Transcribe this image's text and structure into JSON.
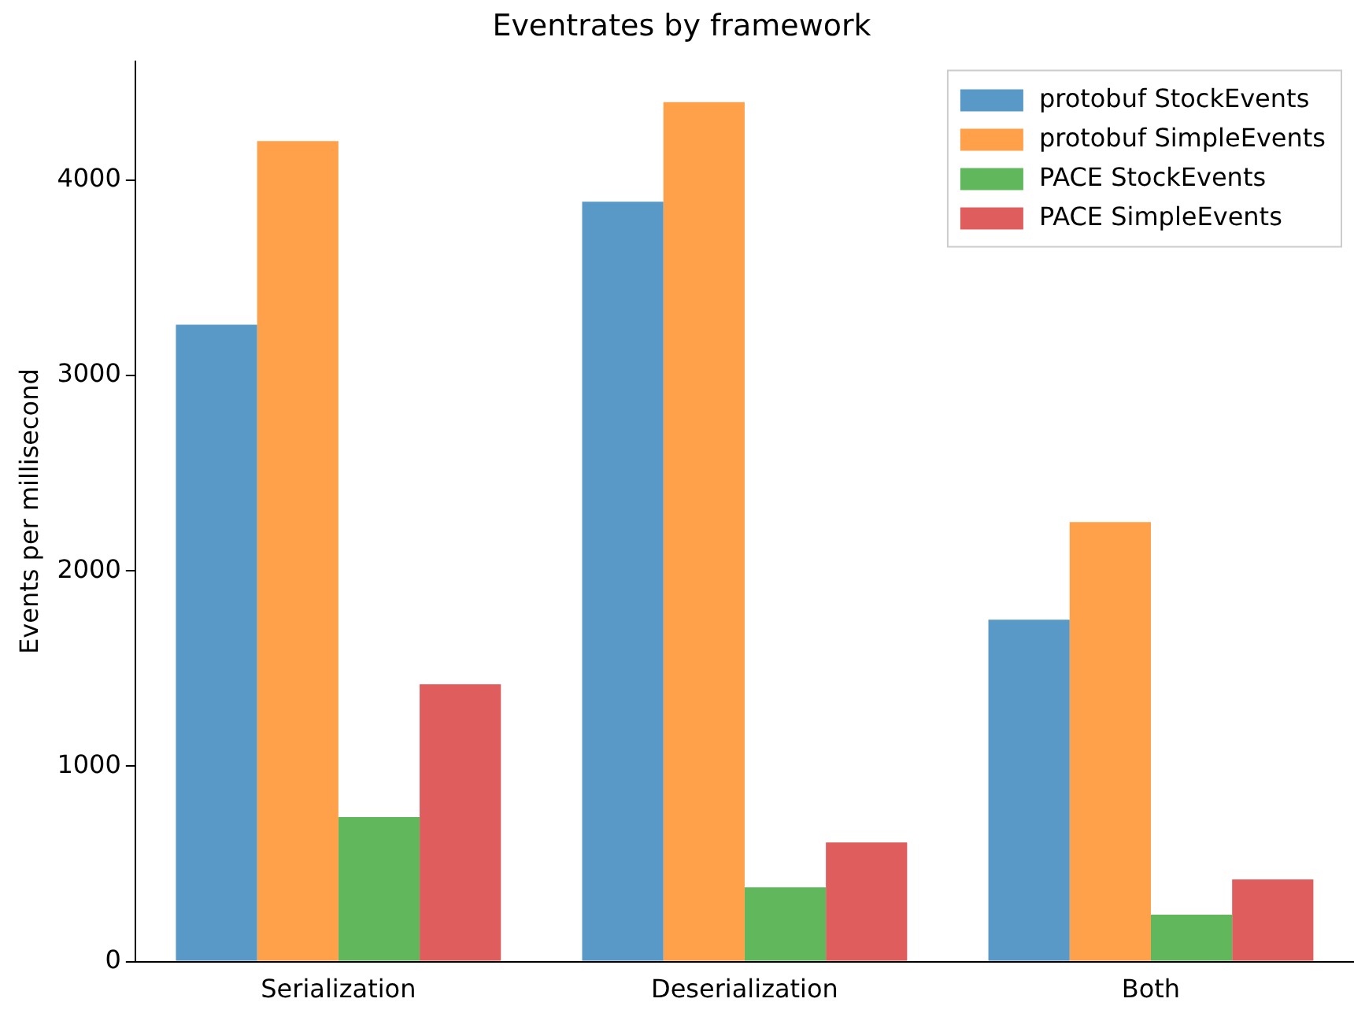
{
  "chart_data": {
    "type": "bar",
    "title": "Eventrates by framework",
    "ylabel": "Events per millisecond",
    "categories": [
      "Serialization",
      "Deserialization",
      "Both"
    ],
    "series": [
      {
        "name": "protobuf StockEvents",
        "color": "#5899c8",
        "values": [
          3260,
          3890,
          1750
        ]
      },
      {
        "name": "protobuf SimpleEvents",
        "color": "#ffa04b",
        "values": [
          4200,
          4400,
          2250
        ]
      },
      {
        "name": "PACE StockEvents",
        "color": "#60b75c",
        "values": [
          740,
          380,
          240
        ]
      },
      {
        "name": "PACE SimpleEvents",
        "color": "#df5d5d",
        "values": [
          1420,
          610,
          420
        ]
      }
    ],
    "ylim": [
      0,
      4610
    ],
    "yticks": [
      0,
      1000,
      2000,
      3000,
      4000
    ],
    "grid": false,
    "legend": "top right"
  }
}
